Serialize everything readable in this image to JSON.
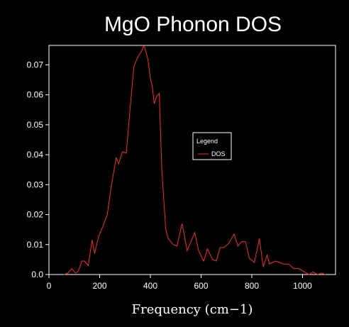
{
  "chart_data": {
    "type": "line",
    "title": "MgO Phonon DOS",
    "xlabel": "Frequency (cm−1)",
    "ylabel": "",
    "xlim": [
      0,
      1130
    ],
    "ylim": [
      0,
      0.0765
    ],
    "xticks": [
      0,
      200,
      400,
      600,
      800,
      1000
    ],
    "yticks": [
      0.0,
      0.01,
      0.02,
      0.03,
      0.04,
      0.05,
      0.06,
      0.07
    ],
    "xtick_labels": [
      "0",
      "200",
      "400",
      "600",
      "800",
      "1000"
    ],
    "ytick_labels": [
      "0.0",
      "0.01",
      "0.02",
      "0.03",
      "0.04",
      "0.05",
      "0.06",
      "0.07"
    ],
    "grid": false,
    "legend": {
      "title": "Legend",
      "placement": "center-right"
    },
    "series": [
      {
        "name": "DOS",
        "color": "#ff2a2a",
        "x": [
          60,
          75,
          90,
          105,
          115,
          130,
          140,
          155,
          170,
          180,
          195,
          210,
          230,
          245,
          265,
          275,
          290,
          305,
          320,
          335,
          350,
          365,
          375,
          390,
          400,
          408,
          415,
          425,
          435,
          445,
          460,
          470,
          490,
          505,
          525,
          545,
          560,
          575,
          590,
          610,
          625,
          645,
          660,
          675,
          690,
          710,
          730,
          745,
          760,
          775,
          790,
          810,
          830,
          845,
          860,
          870,
          880,
          895,
          910,
          925,
          945,
          965,
          985,
          1005,
          1025,
          1040,
          1060,
          1075,
          1090
        ],
        "y": [
          0.0,
          0.0005,
          0.002,
          0.0005,
          0.001,
          0.0045,
          0.0045,
          0.003,
          0.0115,
          0.007,
          0.0125,
          0.0155,
          0.02,
          0.029,
          0.039,
          0.037,
          0.041,
          0.0405,
          0.0555,
          0.0695,
          0.0725,
          0.0745,
          0.0765,
          0.072,
          0.0655,
          0.0625,
          0.057,
          0.0595,
          0.0605,
          0.035,
          0.0155,
          0.012,
          0.01,
          0.0095,
          0.017,
          0.008,
          0.011,
          0.014,
          0.008,
          0.0045,
          0.0085,
          0.005,
          0.0045,
          0.009,
          0.009,
          0.0105,
          0.0135,
          0.0095,
          0.011,
          0.011,
          0.0055,
          0.004,
          0.012,
          0.0025,
          0.0065,
          0.0035,
          0.004,
          0.0045,
          0.004,
          0.0035,
          0.0035,
          0.002,
          0.002,
          0.001,
          0.0,
          0.0008,
          0.0,
          0.0005,
          0.0
        ]
      }
    ]
  }
}
